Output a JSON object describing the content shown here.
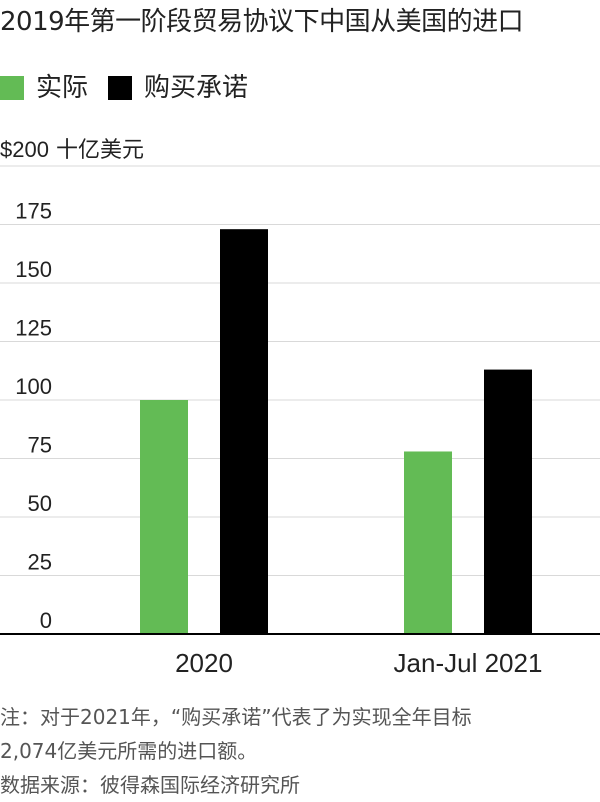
{
  "title": "2019年第一阶段贸易协议下中国从美国的进口",
  "legend": {
    "actual": "实际",
    "commitment": "购买承诺"
  },
  "unit": {
    "prefix": "$200",
    "suffix": " 十亿美元"
  },
  "colors": {
    "actual": "#63bb55",
    "commitment": "#000000",
    "grid": "#d9d9d9",
    "axis": "#000000",
    "text": "#222222",
    "note": "#555555"
  },
  "chart_data": {
    "type": "bar",
    "categories": [
      "2020",
      "Jan-Jul 2021"
    ],
    "series": [
      {
        "name": "实际",
        "values": [
          100,
          78
        ]
      },
      {
        "name": "购买承诺",
        "values": [
          173,
          113
        ]
      }
    ],
    "ylim": [
      0,
      200
    ],
    "yticks": [
      "0",
      "25",
      "50",
      "75",
      "100",
      "125",
      "150",
      "175"
    ],
    "ytick_values": [
      0,
      25,
      50,
      75,
      100,
      125,
      150,
      175
    ],
    "grid": true,
    "legend_position": "top-left"
  },
  "notes": {
    "line1": "注：对于2021年，“购买承诺”代表了为实现全年目标",
    "line2": "2,074亿美元所需的进口额。",
    "line3": "数据来源：彼得森国际经济研究所"
  }
}
